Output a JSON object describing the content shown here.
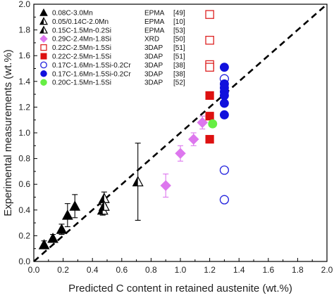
{
  "chart_data": {
    "type": "scatter",
    "xlabel": "Predicted C content in retained austenite (wt.%)",
    "ylabel": "Experimental measurements (wt.%)",
    "xlim": [
      0.0,
      2.0
    ],
    "ylim": [
      0.0,
      2.0
    ],
    "xticks": [
      "0.0",
      "0.2",
      "0.4",
      "0.6",
      "0.8",
      "1.0",
      "1.2",
      "1.4",
      "1.6",
      "1.8",
      "2.0"
    ],
    "yticks": [
      "0.0",
      "0.2",
      "0.4",
      "0.6",
      "0.8",
      "1.0",
      "1.2",
      "1.4",
      "1.6",
      "1.8",
      "2.0"
    ],
    "grid": false,
    "legend_position": "top-left",
    "reference_line": {
      "style": "dashed",
      "from": [
        0,
        0
      ],
      "to": [
        2,
        2
      ],
      "color": "#000000"
    },
    "series": [
      {
        "name": "0.08C-3.0Mn",
        "method": "EPMA",
        "ref": "[49]",
        "marker": "triangle-filled",
        "color": "#000000",
        "points": [
          [
            0.07,
            0.13
          ],
          [
            0.13,
            0.18
          ],
          [
            0.19,
            0.25
          ],
          [
            0.23,
            0.36
          ],
          [
            0.28,
            0.43
          ]
        ],
        "errors": [
          0.03,
          0.03,
          0.04,
          0.09,
          0.09
        ]
      },
      {
        "name": "0.05/0.14C-2.0Mn",
        "method": "EPMA",
        "ref": "[10]",
        "marker": "triangle-half",
        "color": "#000000",
        "points": [
          [
            0.48,
            0.49
          ],
          [
            0.71,
            0.62
          ]
        ],
        "errors": [
          0.05,
          0.3
        ]
      },
      {
        "name": "0.15C-1.5Mn-0.2Si",
        "method": "EPMA",
        "ref": "[53]",
        "marker": "triangle-half",
        "color": "#000000",
        "points": [
          [
            0.47,
            0.4
          ],
          [
            0.48,
            0.43
          ]
        ],
        "errors": [
          0.04,
          0.03
        ]
      },
      {
        "name": "0.29C-2.4Mn-1.8Si",
        "method": "XRD",
        "ref": "[50]",
        "marker": "diamond-filled",
        "color": "#dd77ee",
        "points": [
          [
            0.9,
            0.59
          ],
          [
            1.0,
            0.84
          ],
          [
            1.09,
            0.95
          ],
          [
            1.15,
            1.08
          ]
        ],
        "errors": [
          0.09,
          0.06,
          0.05,
          0.05
        ]
      },
      {
        "name": "0.22C-2.5Mn-1.5Si",
        "method": "3DAP",
        "ref": "[51]",
        "marker": "square-open",
        "color": "#dd2222",
        "points": [
          [
            1.2,
            1.92
          ],
          [
            1.2,
            1.72
          ],
          [
            1.2,
            1.53
          ],
          [
            1.2,
            1.51
          ]
        ]
      },
      {
        "name": "0.22C-2.5Mn-1.5Si",
        "method": "3DAP",
        "ref": "[51]",
        "marker": "square-filled",
        "color": "#dd1111",
        "points": [
          [
            1.2,
            1.29
          ],
          [
            1.2,
            1.13
          ],
          [
            1.2,
            0.95
          ]
        ]
      },
      {
        "name": "0.17C-1.6Mn-1.5Si-0.2Cr",
        "method": "3DAP",
        "ref": "[38]",
        "marker": "circle-open",
        "color": "#2222dd",
        "points": [
          [
            1.3,
            1.42
          ],
          [
            1.3,
            0.71
          ],
          [
            1.3,
            0.48
          ]
        ]
      },
      {
        "name": "0.17C-1.6Mn-1.5Si-0.2Cr",
        "method": "3DAP",
        "ref": "[38]",
        "marker": "circle-filled",
        "color": "#1111dd",
        "points": [
          [
            1.3,
            1.51
          ],
          [
            1.3,
            1.38
          ],
          [
            1.3,
            1.35
          ],
          [
            1.3,
            1.32
          ],
          [
            1.3,
            1.29
          ],
          [
            1.3,
            1.23
          ],
          [
            1.3,
            1.14
          ]
        ]
      },
      {
        "name": "0.20C-1.5Mn-1.5Si",
        "method": "3DAP",
        "ref": "[52]",
        "marker": "circle-filled",
        "color": "#66ee44",
        "points": [
          [
            1.22,
            1.07
          ]
        ]
      }
    ]
  }
}
